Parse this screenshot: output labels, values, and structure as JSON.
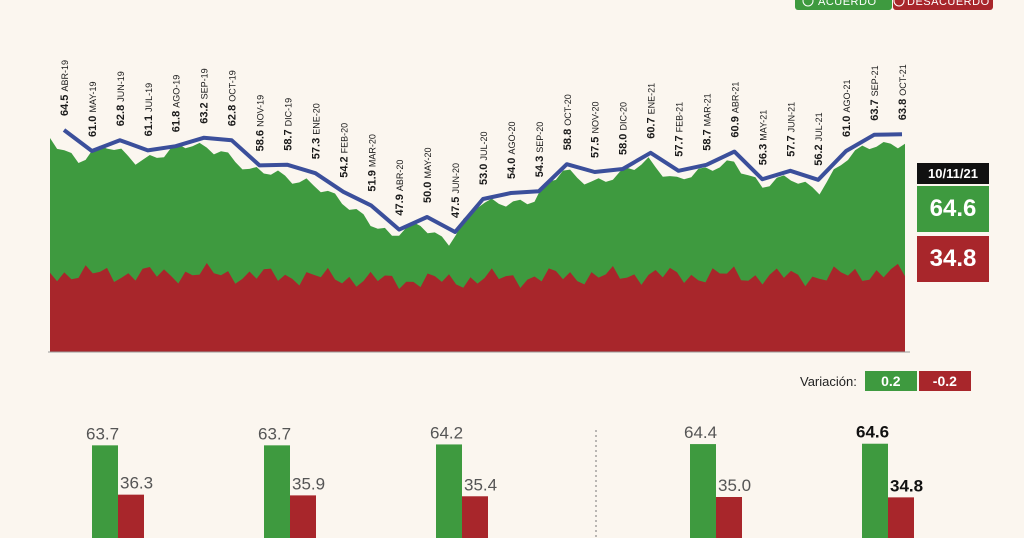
{
  "legend": {
    "agree_label": "ACUERDO",
    "disagree_label": "DESACUERDO",
    "agree_color": "#3e9a3f",
    "disagree_color": "#a8262b",
    "line_color": "#3b4f9b"
  },
  "current": {
    "date": "10/11/21",
    "agree": "64.6",
    "disagree": "34.8"
  },
  "variation": {
    "label": "Variación:",
    "agree": "0.2",
    "disagree": "-0.2"
  },
  "chart_data": [
    {
      "type": "line",
      "series_name": "",
      "categories": [
        "ABR-19",
        "MAY-19",
        "JUN-19",
        "JUL-19",
        "AGO-19",
        "SEP-19",
        "OCT-19",
        "NOV-19",
        "DIC-19",
        "ENE-20",
        "FEB-20",
        "MAR-20",
        "ABR-20",
        "MAY-20",
        "JUN-20",
        "JUL-20",
        "AGO-20",
        "SEP-20",
        "OCT-20",
        "NOV-20",
        "DIC-20",
        "ENE-21",
        "FEB-21",
        "MAR-21",
        "ABR-21",
        "MAY-21",
        "JUN-21",
        "JUL-21",
        "AGO-21",
        "SEP-21",
        "OCT-21"
      ],
      "values": [
        64.5,
        61.0,
        62.8,
        61.1,
        61.8,
        63.2,
        62.8,
        58.6,
        58.7,
        57.3,
        54.2,
        51.9,
        47.9,
        50.0,
        47.5,
        53.0,
        54.0,
        54.3,
        58.8,
        57.5,
        58.0,
        60.7,
        57.7,
        58.7,
        60.9,
        56.3,
        57.7,
        56.2,
        61.0,
        63.7,
        63.8
      ],
      "labels": [
        "64.5",
        "61.0",
        "62.8",
        "61.1",
        "61.8",
        "63.2",
        "62.8",
        "58.6",
        "58.7",
        "57.3",
        "54.2",
        "51.9",
        "47.9",
        "50.0",
        "47.5",
        "53.0",
        "54.0",
        "54.3",
        "58.8",
        "57.5",
        "58.0",
        "60.7",
        "57.7",
        "58.7",
        "60.9",
        "56.3",
        "57.7",
        "56.2",
        "61.0",
        "63.7",
        "63.8"
      ],
      "area_series": [
        "ACUERDO",
        "DESACUERDO"
      ]
    },
    {
      "type": "bar",
      "series": [
        {
          "name": "ACUERDO",
          "values": [
            63.7,
            63.7,
            64.2,
            64.4,
            64.6
          ],
          "labels": [
            "63.7",
            "63.7",
            "64.2",
            "64.4",
            "64.6"
          ]
        },
        {
          "name": "DESACUERDO",
          "values": [
            36.3,
            35.9,
            35.4,
            35.0,
            34.8
          ],
          "labels": [
            "36.3",
            "35.9",
            "35.4",
            "35.0",
            "34.8"
          ]
        }
      ],
      "highlight_index": 4
    }
  ]
}
